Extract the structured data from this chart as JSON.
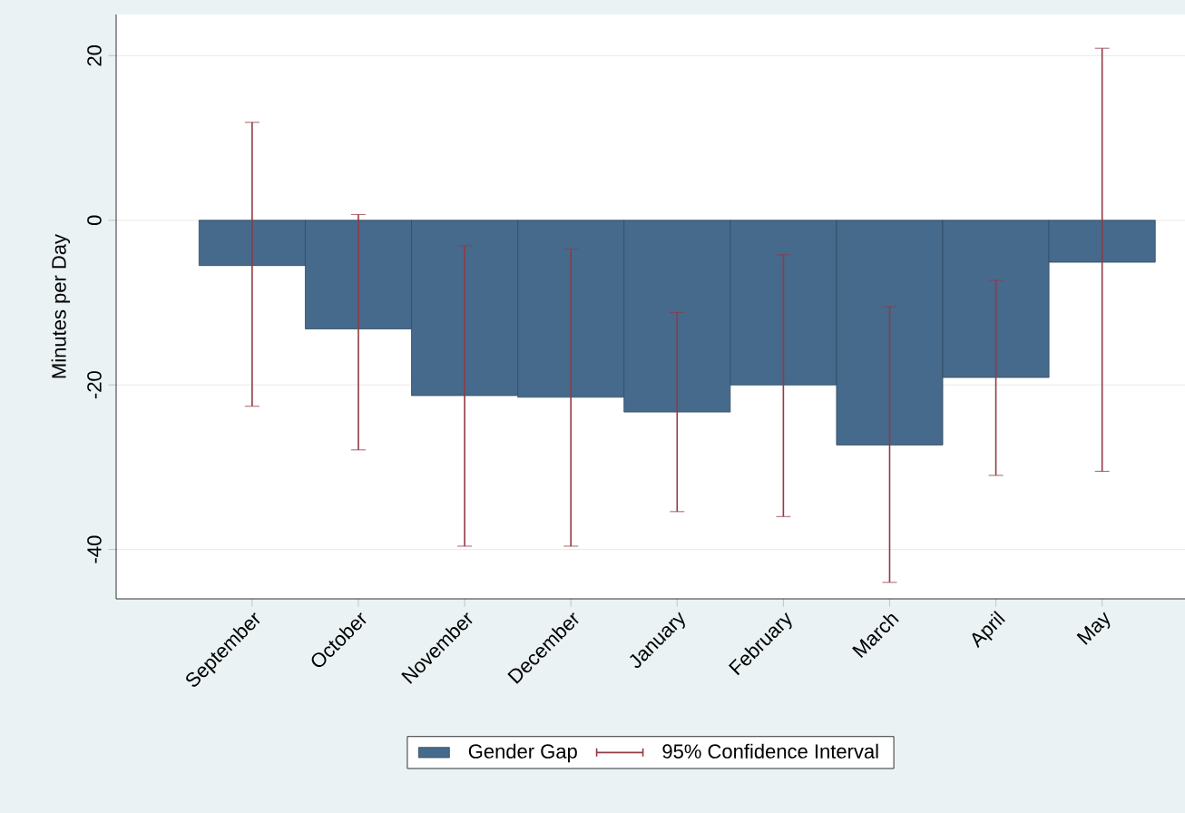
{
  "chart_data": {
    "type": "bar",
    "ylabel": "Minutes per Day",
    "categories": [
      "September",
      "October",
      "November",
      "December",
      "January",
      "February",
      "March",
      "April",
      "May"
    ],
    "series": [
      {
        "name": "Gender Gap",
        "color": "#466a8b",
        "values": [
          -5.5,
          -13.2,
          -21.3,
          -21.5,
          -23.3,
          -20,
          -27.3,
          -19.1,
          -5.1
        ],
        "errors": [
          [
            -22.6,
            11.9
          ],
          [
            -27.9,
            0.7
          ],
          [
            -39.6,
            -3.1
          ],
          [
            -39.6,
            -3.5
          ],
          [
            -35.4,
            -11.2
          ],
          [
            -36,
            -4.2
          ],
          [
            -44,
            -10.5
          ],
          [
            -31,
            -7.3
          ],
          [
            -30.5,
            20.9
          ]
        ]
      }
    ],
    "annotations": [
      "95% Confidence Interval"
    ],
    "ylim": [
      -46,
      25
    ],
    "yticks": [
      -40,
      -20,
      0,
      20
    ],
    "grid": "y",
    "legend": "bottom"
  }
}
